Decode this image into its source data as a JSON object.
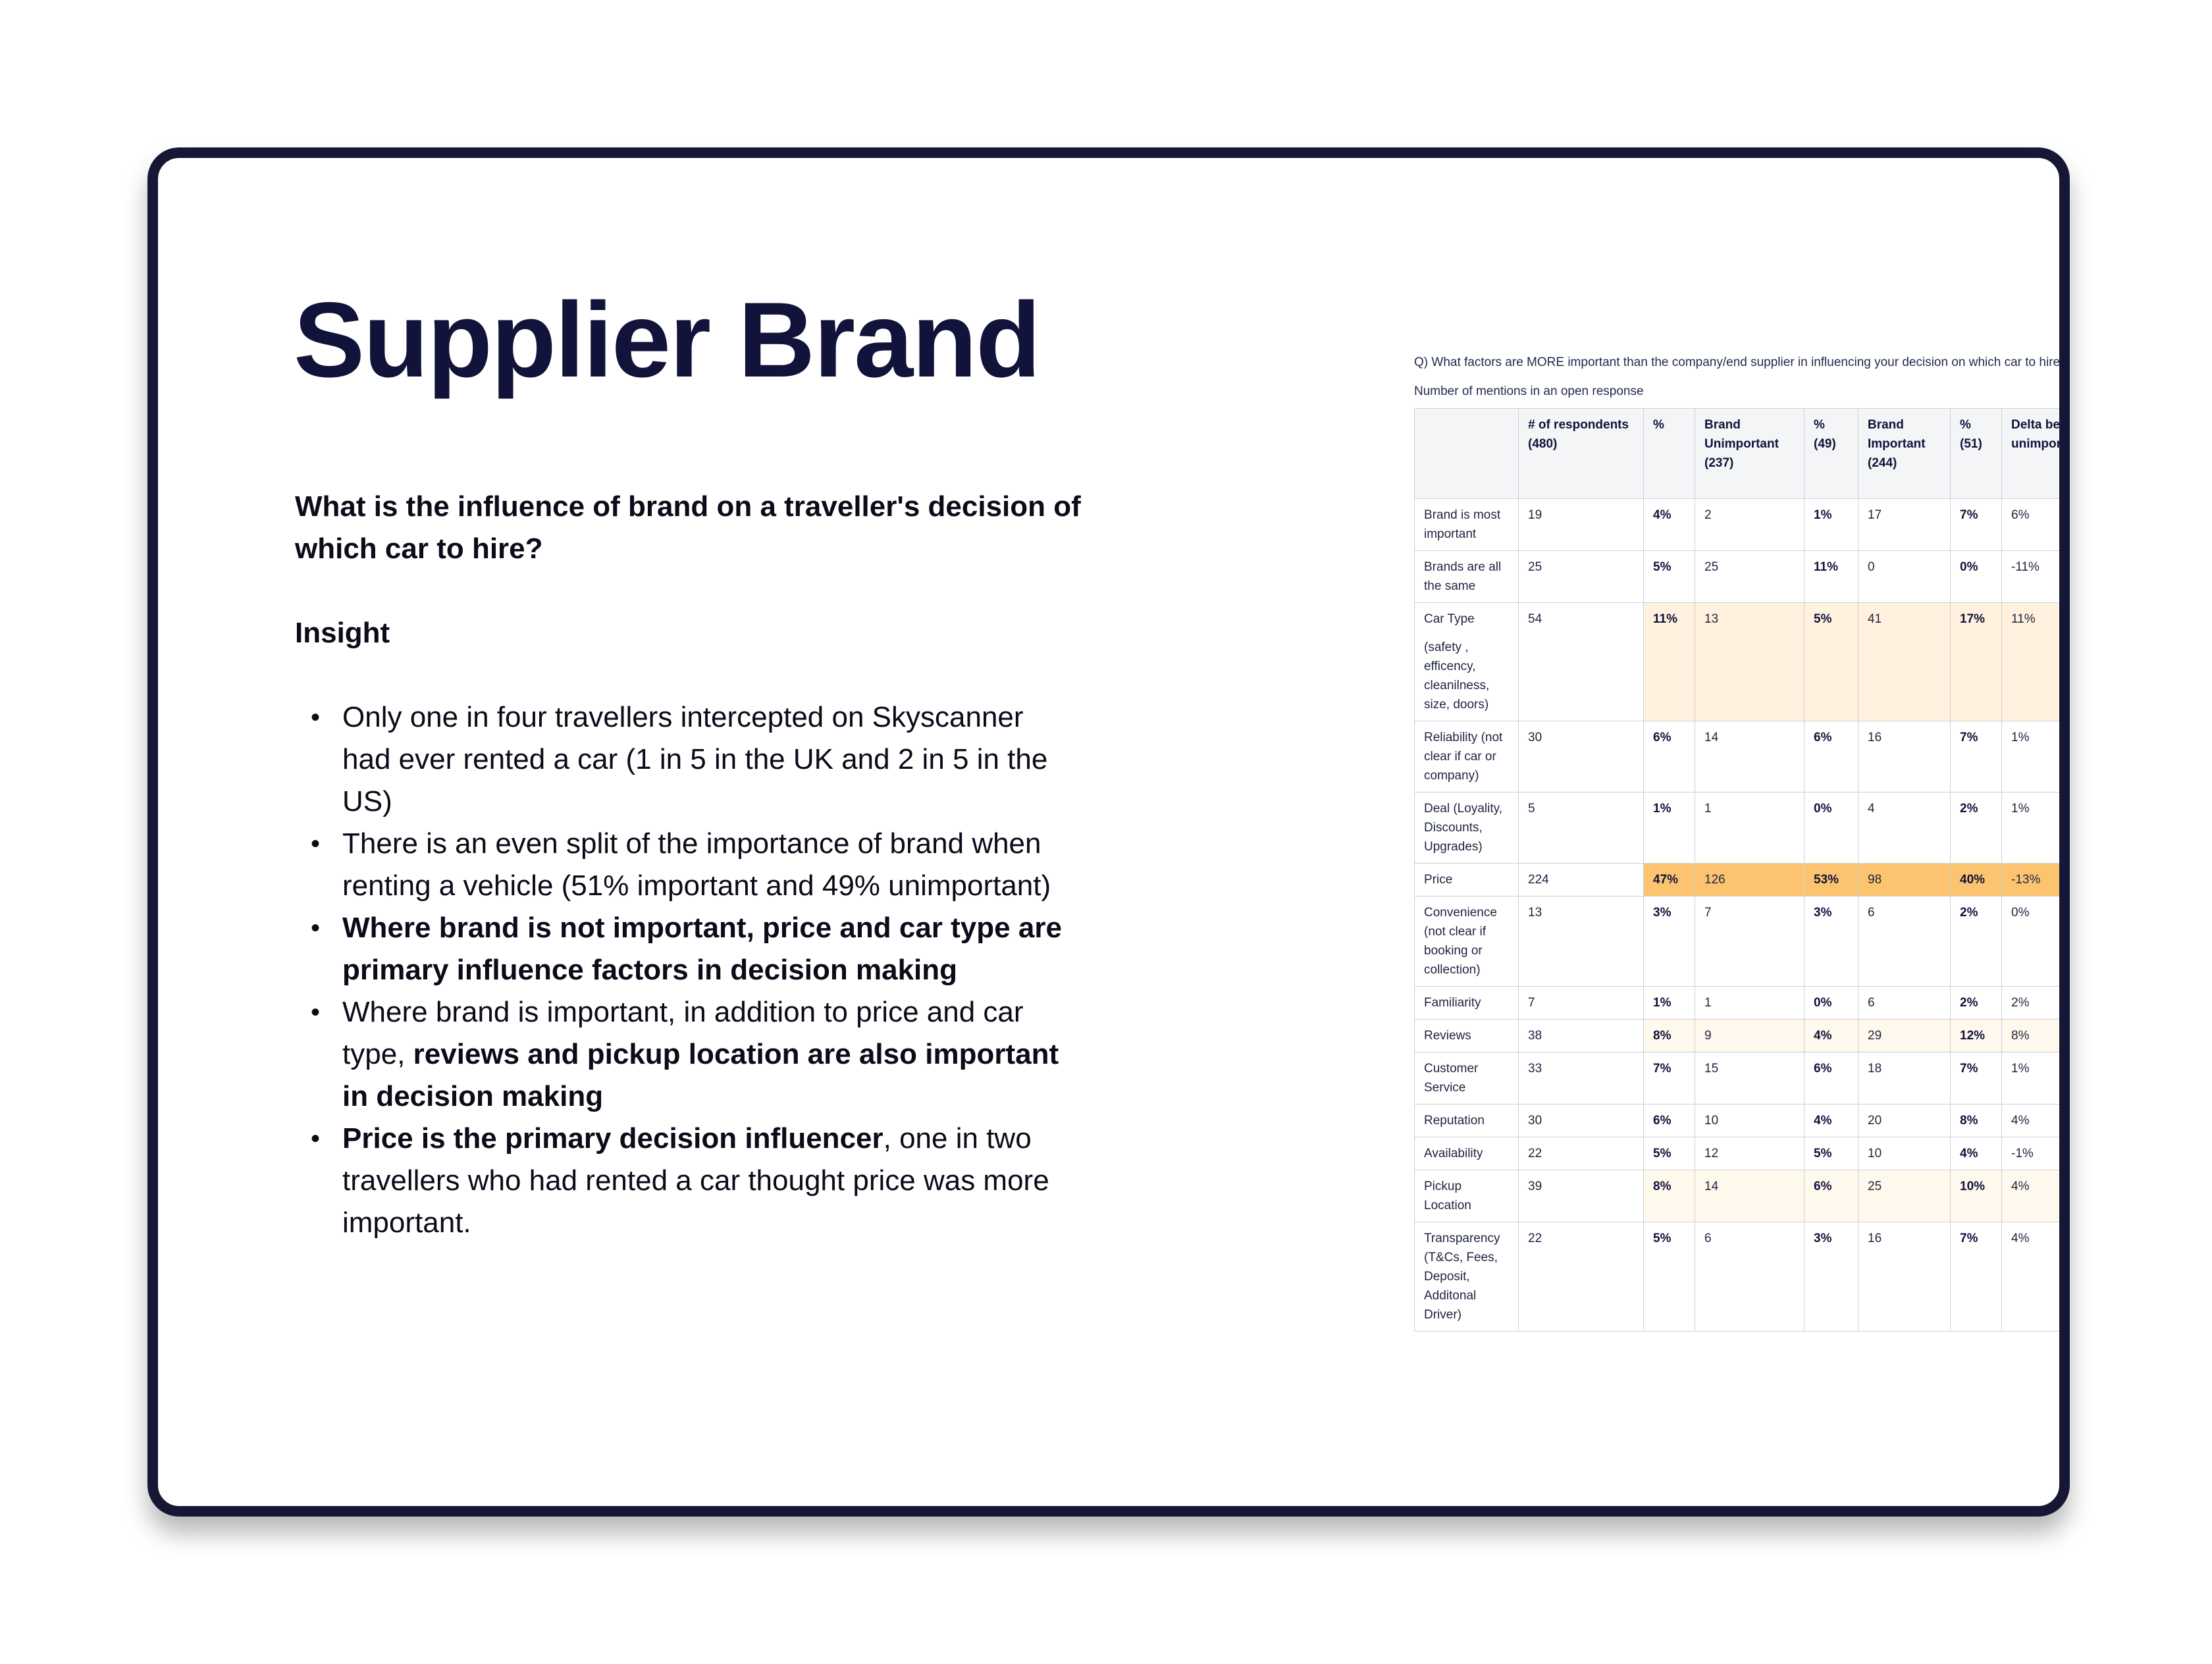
{
  "title": "Supplier Brand",
  "question": "What is the influence of brand on a traveller's decision of which car to hire?",
  "insight_heading": "Insight",
  "bullets": [
    [
      {
        "t": "Only one in four travellers intercepted on Skyscanner had ever rented a car (1 in 5 in the UK and 2 in 5 in the US)",
        "b": false
      }
    ],
    [
      {
        "t": "There is an even split of the importance of brand when renting a vehicle (51% important and 49% unimportant)",
        "b": false
      }
    ],
    [
      {
        "t": "Where brand is not important, price and car type are primary influence factors in decision making",
        "b": true
      }
    ],
    [
      {
        "t": "Where brand is important, in addition to price and car type, ",
        "b": false
      },
      {
        "t": "reviews and pickup location are also important in decision making",
        "b": true
      }
    ],
    [
      {
        "t": "Price is the primary decision influencer",
        "b": true
      },
      {
        "t": ", one in two travellers who had rented a car thought price was more important.",
        "b": false
      }
    ]
  ],
  "survey_table": {
    "question": "Q) What factors are MORE important than the company/end supplier in influencing your decision on which car to hire?",
    "subtitle": "Number of mentions in an open response",
    "headers": [
      "",
      "# of respondents (480)",
      "%",
      "Brand Unimportant (237)",
      "% (49)",
      "Brand Important (244)",
      "% (51)",
      "Delta between important and unimportant"
    ],
    "highlight_colors": {
      "light": "#fff1dd",
      "faint": "#fff8ec",
      "strong": "#fcc46f"
    },
    "rows": [
      {
        "factor": "Brand is most important",
        "values": [
          "19",
          "4%",
          "2",
          "1%",
          "17",
          "7%",
          "6%"
        ],
        "highlight": "none"
      },
      {
        "factor": "Brands are all the same",
        "values": [
          "25",
          "5%",
          "25",
          "11%",
          "0",
          "0%",
          "-11%"
        ],
        "highlight": "none"
      },
      {
        "factor": "Car Type",
        "factor_note": "(safety , efficency, cleanilness, size, doors)",
        "values": [
          "54",
          "11%",
          "13",
          "5%",
          "41",
          "17%",
          "11%"
        ],
        "highlight": "light"
      },
      {
        "factor": "Reliability (not clear if car or company)",
        "values": [
          "30",
          "6%",
          "14",
          "6%",
          "16",
          "7%",
          "1%"
        ],
        "highlight": "none"
      },
      {
        "factor": "Deal (Loyality, Discounts, Upgrades)",
        "values": [
          "5",
          "1%",
          "1",
          "0%",
          "4",
          "2%",
          "1%"
        ],
        "highlight": "none"
      },
      {
        "factor": "Price",
        "values": [
          "224",
          "47%",
          "126",
          "53%",
          "98",
          "40%",
          "-13%"
        ],
        "highlight": "strong"
      },
      {
        "factor": "Convenience (not clear if booking or collection)",
        "values": [
          "13",
          "3%",
          "7",
          "3%",
          "6",
          "2%",
          "0%"
        ],
        "highlight": "none"
      },
      {
        "factor": "Familiarity",
        "values": [
          "7",
          "1%",
          "1",
          "0%",
          "6",
          "2%",
          "2%"
        ],
        "highlight": "none"
      },
      {
        "factor": "Reviews",
        "values": [
          "38",
          "8%",
          "9",
          "4%",
          "29",
          "12%",
          "8%"
        ],
        "highlight": "faint"
      },
      {
        "factor": "Customer Service",
        "values": [
          "33",
          "7%",
          "15",
          "6%",
          "18",
          "7%",
          "1%"
        ],
        "highlight": "none"
      },
      {
        "factor": "Reputation",
        "values": [
          "30",
          "6%",
          "10",
          "4%",
          "20",
          "8%",
          "4%"
        ],
        "highlight": "none"
      },
      {
        "factor": "Availability",
        "values": [
          "22",
          "5%",
          "12",
          "5%",
          "10",
          "4%",
          "-1%"
        ],
        "highlight": "none"
      },
      {
        "factor": "Pickup Location",
        "values": [
          "39",
          "8%",
          "14",
          "6%",
          "25",
          "10%",
          "4%"
        ],
        "highlight": "faint"
      },
      {
        "factor": "Transparency (T&Cs, Fees, Deposit, Additonal Driver)",
        "values": [
          "22",
          "5%",
          "6",
          "3%",
          "16",
          "7%",
          "4%"
        ],
        "highlight": "none"
      }
    ]
  }
}
